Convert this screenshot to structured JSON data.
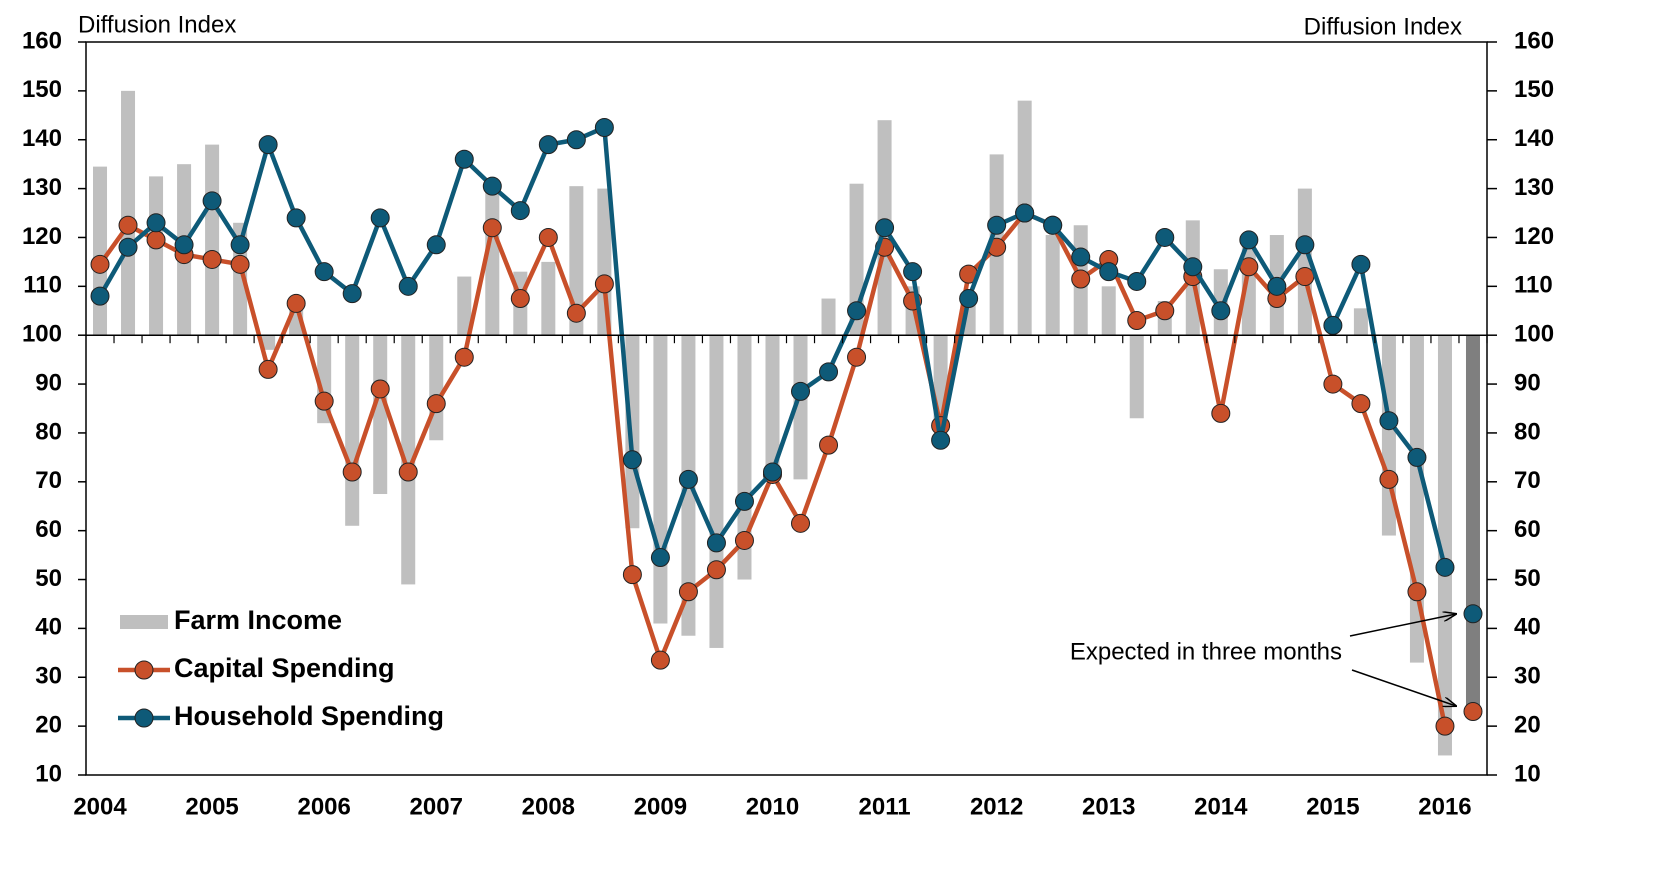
{
  "chart_data": {
    "type": "combo",
    "y_axis_label": "Diffusion Index",
    "y2_axis_label": "Diffusion Index",
    "annotation": "Expected in three months",
    "categories": [
      "2004",
      null,
      null,
      null,
      "2005",
      null,
      null,
      null,
      "2006",
      null,
      null,
      null,
      "2007",
      null,
      null,
      null,
      "2008",
      null,
      null,
      null,
      "2009",
      null,
      null,
      null,
      "2010",
      null,
      null,
      null,
      "2011",
      null,
      null,
      null,
      "2012",
      null,
      null,
      null,
      "2013",
      null,
      null,
      null,
      "2014",
      null,
      null,
      null,
      "2015",
      null,
      null,
      null,
      "2016",
      null
    ],
    "ylim": [
      10,
      160
    ],
    "yticks": [
      10,
      20,
      30,
      40,
      50,
      60,
      70,
      80,
      90,
      100,
      110,
      120,
      130,
      140,
      150,
      160
    ],
    "y2lim": [
      10,
      160
    ],
    "y2ticks": [
      10,
      20,
      30,
      40,
      50,
      60,
      70,
      80,
      90,
      100,
      110,
      120,
      130,
      140,
      150,
      160
    ],
    "x_axis_at": 100,
    "legend": "lower left",
    "series": [
      {
        "name": "Farm Income",
        "kind": "bar",
        "color": "#bfbfbf",
        "expected_color": "#7f7f7f",
        "values": [
          134.5,
          150,
          132.5,
          135,
          139,
          123,
          97,
          107,
          82,
          61,
          67.5,
          49,
          78.5,
          112,
          130,
          113,
          115,
          130.5,
          130,
          60.5,
          41,
          38.5,
          36,
          50,
          72,
          70.5,
          107.5,
          131,
          144,
          110,
          81,
          107,
          137,
          148,
          120.5,
          122.5,
          110,
          83,
          107,
          123.5,
          113.5,
          119.5,
          120.5,
          130,
          100,
          105.5,
          59,
          33,
          14,
          null
        ],
        "expected": 23
      },
      {
        "name": "Capital Spending",
        "kind": "line",
        "color": "#c8502a",
        "values": [
          114.5,
          122.5,
          119.5,
          116.5,
          115.5,
          114.5,
          93,
          106.5,
          86.5,
          72,
          89,
          72,
          86,
          95.5,
          122,
          107.5,
          120,
          104.5,
          110.5,
          51,
          33.5,
          47.5,
          52,
          58,
          71.5,
          61.5,
          77.5,
          95.5,
          118,
          107,
          81.5,
          112.5,
          118,
          125,
          122.5,
          111.5,
          115.5,
          103,
          105,
          112,
          84,
          114,
          107.5,
          112,
          90,
          86,
          70.5,
          47.5,
          20,
          null
        ],
        "expected": 23
      },
      {
        "name": "Household Spending",
        "kind": "line",
        "color": "#0e5a78",
        "values": [
          108,
          118,
          123,
          118.5,
          127.5,
          118.5,
          139,
          124,
          113,
          108.5,
          124,
          110,
          118.5,
          136,
          130.5,
          125.5,
          139,
          140,
          142.5,
          74.5,
          54.5,
          70.5,
          57.5,
          66,
          72,
          88.5,
          92.5,
          105,
          122,
          113,
          78.5,
          107.5,
          122.5,
          125,
          122.5,
          116,
          113,
          111,
          120,
          114,
          105,
          119.5,
          110,
          118.5,
          102,
          114.5,
          82.5,
          75,
          52.5,
          null
        ],
        "expected": 43
      }
    ]
  }
}
